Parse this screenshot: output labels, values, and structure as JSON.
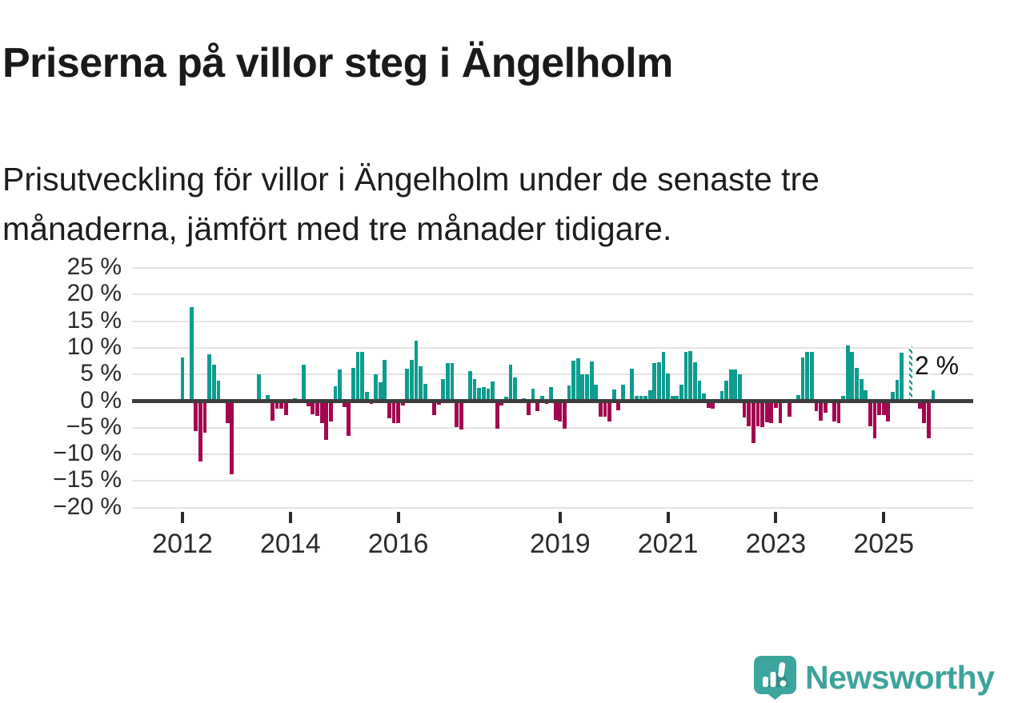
{
  "title": "Priserna på villor steg i Ängelholm",
  "subtitle": "Prisutveckling för villor i Ängelholm under de senaste tre månaderna, jämfört med tre månader tidigare.",
  "branding": {
    "name": "Newsworthy"
  },
  "colors": {
    "positive": "#0e9c8e",
    "negative": "#a30550",
    "brand": "#3da39c",
    "grid": "#e3e3e3",
    "zero_line": "#3d3d3d",
    "text": "#1a1a1a"
  },
  "annotation": {
    "date": "2025-12",
    "text": "2 %"
  },
  "chart_data": {
    "type": "bar",
    "title": "Priserna på villor steg i Ängelholm",
    "xlabel": "",
    "ylabel": "",
    "unit": "%",
    "ylim": [
      -20,
      25
    ],
    "ytick_step": 5,
    "grid": true,
    "legend": false,
    "xticks": [
      2012,
      2014,
      2016,
      2019,
      2021,
      2023,
      2025
    ],
    "preliminary": "2025-07",
    "values": [
      [
        "2012-01",
        8.2
      ],
      [
        "2012-03",
        17.6
      ],
      [
        "2012-04",
        -5.7
      ],
      [
        "2012-05",
        -11.4
      ],
      [
        "2012-06",
        -6.0
      ],
      [
        "2012-07",
        8.8
      ],
      [
        "2012-08",
        6.8
      ],
      [
        "2012-09",
        3.9
      ],
      [
        "2012-11",
        -4.2
      ],
      [
        "2012-12",
        -13.7
      ],
      [
        "2013-06",
        5.0
      ],
      [
        "2013-08",
        1.2
      ],
      [
        "2013-09",
        -3.7
      ],
      [
        "2013-10",
        -1.5
      ],
      [
        "2013-11",
        -1.5
      ],
      [
        "2013-12",
        -2.6
      ],
      [
        "2014-02",
        0.6
      ],
      [
        "2014-04",
        6.9
      ],
      [
        "2014-05",
        -1.0
      ],
      [
        "2014-06",
        -2.5
      ],
      [
        "2014-07",
        -2.8
      ],
      [
        "2014-08",
        -4.2
      ],
      [
        "2014-09",
        -7.3
      ],
      [
        "2014-10",
        -3.8
      ],
      [
        "2014-11",
        2.8
      ],
      [
        "2014-12",
        5.9
      ],
      [
        "2015-01",
        -1.1
      ],
      [
        "2015-02",
        -6.5
      ],
      [
        "2015-03",
        6.3
      ],
      [
        "2015-04",
        9.2
      ],
      [
        "2015-05",
        9.2
      ],
      [
        "2015-06",
        1.8
      ],
      [
        "2015-07",
        -0.5
      ],
      [
        "2015-08",
        5.0
      ],
      [
        "2015-09",
        3.5
      ],
      [
        "2015-10",
        7.8
      ],
      [
        "2015-11",
        -3.2
      ],
      [
        "2015-12",
        -4.2
      ],
      [
        "2016-01",
        -4.2
      ],
      [
        "2016-02",
        -0.9
      ],
      [
        "2016-03",
        6.1
      ],
      [
        "2016-04",
        7.8
      ],
      [
        "2016-05",
        11.3
      ],
      [
        "2016-06",
        6.5
      ],
      [
        "2016-07",
        3.2
      ],
      [
        "2016-09",
        -2.7
      ],
      [
        "2016-10",
        -0.7
      ],
      [
        "2016-11",
        4.1
      ],
      [
        "2016-12",
        7.1
      ],
      [
        "2017-01",
        7.1
      ],
      [
        "2017-02",
        -4.9
      ],
      [
        "2017-03",
        -5.3
      ],
      [
        "2017-05",
        5.7
      ],
      [
        "2017-06",
        4.2
      ],
      [
        "2017-07",
        2.5
      ],
      [
        "2017-08",
        2.6
      ],
      [
        "2017-09",
        2.3
      ],
      [
        "2017-10",
        3.7
      ],
      [
        "2017-11",
        -5.2
      ],
      [
        "2017-12",
        -0.8
      ],
      [
        "2018-01",
        0.8
      ],
      [
        "2018-02",
        6.8
      ],
      [
        "2018-03",
        4.5
      ],
      [
        "2018-05",
        0.5
      ],
      [
        "2018-06",
        -2.6
      ],
      [
        "2018-07",
        2.3
      ],
      [
        "2018-08",
        -1.9
      ],
      [
        "2018-09",
        1.0
      ],
      [
        "2018-10",
        -0.5
      ],
      [
        "2018-11",
        2.7
      ],
      [
        "2018-12",
        -3.5
      ],
      [
        "2019-01",
        -3.9
      ],
      [
        "2019-02",
        -5.2
      ],
      [
        "2019-03",
        3.0
      ],
      [
        "2019-04",
        7.6
      ],
      [
        "2019-05",
        8.1
      ],
      [
        "2019-06",
        5.0
      ],
      [
        "2019-07",
        5.0
      ],
      [
        "2019-08",
        7.4
      ],
      [
        "2019-09",
        3.1
      ],
      [
        "2019-10",
        -2.9
      ],
      [
        "2019-11",
        -3.0
      ],
      [
        "2019-12",
        -3.9
      ],
      [
        "2020-01",
        2.2
      ],
      [
        "2020-02",
        -1.7
      ],
      [
        "2020-03",
        3.1
      ],
      [
        "2020-05",
        6.1
      ],
      [
        "2020-06",
        1.0
      ],
      [
        "2020-07",
        1.0
      ],
      [
        "2020-08",
        1.0
      ],
      [
        "2020-09",
        2.0
      ],
      [
        "2020-10",
        7.1
      ],
      [
        "2020-11",
        7.3
      ],
      [
        "2020-12",
        9.3
      ],
      [
        "2021-01",
        5.2
      ],
      [
        "2021-02",
        1.0
      ],
      [
        "2021-03",
        1.0
      ],
      [
        "2021-04",
        3.1
      ],
      [
        "2021-05",
        9.3
      ],
      [
        "2021-06",
        9.4
      ],
      [
        "2021-07",
        7.3
      ],
      [
        "2021-08",
        3.9
      ],
      [
        "2021-09",
        1.4
      ],
      [
        "2021-10",
        -1.3
      ],
      [
        "2021-11",
        -1.4
      ],
      [
        "2022-01",
        1.9
      ],
      [
        "2022-02",
        3.9
      ],
      [
        "2022-03",
        5.9
      ],
      [
        "2022-04",
        6.0
      ],
      [
        "2022-05",
        5.0
      ],
      [
        "2022-06",
        -3.1
      ],
      [
        "2022-07",
        -4.7
      ],
      [
        "2022-08",
        -7.9
      ],
      [
        "2022-09",
        -4.8
      ],
      [
        "2022-10",
        -4.9
      ],
      [
        "2022-11",
        -4.0
      ],
      [
        "2022-12",
        -4.2
      ],
      [
        "2023-01",
        -1.3
      ],
      [
        "2023-02",
        -4.2
      ],
      [
        "2023-04",
        -2.9
      ],
      [
        "2023-06",
        1.2
      ],
      [
        "2023-07",
        8.2
      ],
      [
        "2023-08",
        9.2
      ],
      [
        "2023-09",
        9.2
      ],
      [
        "2023-10",
        -1.9
      ],
      [
        "2023-11",
        -3.7
      ],
      [
        "2023-12",
        -2.2
      ],
      [
        "2024-02",
        -3.9
      ],
      [
        "2024-03",
        -4.1
      ],
      [
        "2024-04",
        1.0
      ],
      [
        "2024-05",
        10.5
      ],
      [
        "2024-06",
        9.3
      ],
      [
        "2024-07",
        6.3
      ],
      [
        "2024-08",
        4.1
      ],
      [
        "2024-09",
        2.0
      ],
      [
        "2024-10",
        -4.7
      ],
      [
        "2024-11",
        -7.0
      ],
      [
        "2024-12",
        -2.6
      ],
      [
        "2025-01",
        -2.6
      ],
      [
        "2025-02",
        -3.8
      ],
      [
        "2025-03",
        1.8
      ],
      [
        "2025-04",
        4.0
      ],
      [
        "2025-05",
        9.1
      ],
      [
        "2025-07",
        10.3
      ],
      [
        "2025-09",
        -1.5
      ],
      [
        "2025-10",
        -4.2
      ],
      [
        "2025-11",
        -7.0
      ],
      [
        "2025-12",
        2.0
      ]
    ]
  }
}
